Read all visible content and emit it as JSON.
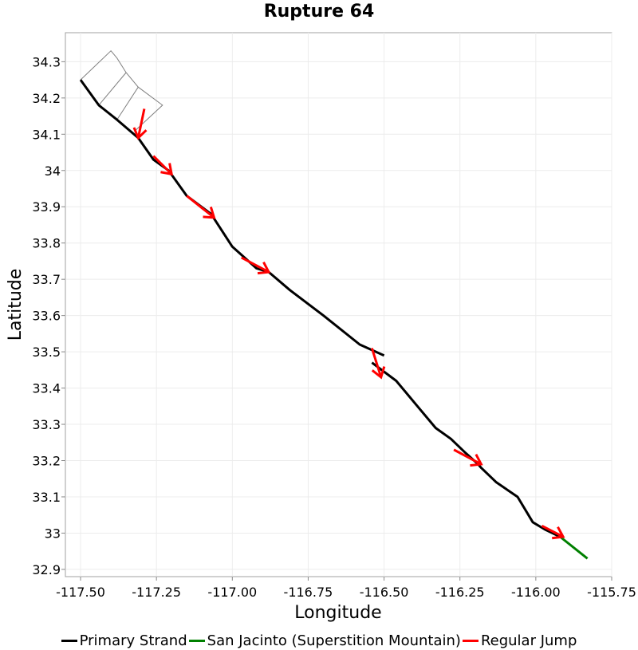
{
  "chart_data": {
    "type": "line",
    "title": "Rupture 64",
    "xlabel": "Longitude",
    "ylabel": "Latitude",
    "xlim": [
      -117.55,
      -115.75
    ],
    "ylim": [
      32.88,
      34.38
    ],
    "xticks": [
      -117.5,
      -117.25,
      -117.0,
      -116.75,
      -116.5,
      -116.25,
      -116.0,
      -115.75
    ],
    "xtick_labels": [
      "-117.50",
      "-117.25",
      "-117.00",
      "-116.75",
      "-116.50",
      "-116.25",
      "-116.00",
      "-115.75"
    ],
    "yticks": [
      32.9,
      33.0,
      33.1,
      33.2,
      33.3,
      33.4,
      33.5,
      33.6,
      33.7,
      33.8,
      33.9,
      34.0,
      34.1,
      34.2,
      34.3
    ],
    "ytick_labels": [
      "32.9",
      "33",
      "33.1",
      "33.2",
      "33.3",
      "33.4",
      "33.5",
      "33.6",
      "33.7",
      "33.8",
      "33.9",
      "34",
      "34.1",
      "34.2",
      "34.3"
    ],
    "grid": true,
    "legend_position": "bottom",
    "series": [
      {
        "name": "Primary Strand",
        "color": "#000000",
        "segments": [
          [
            [
              -117.5,
              34.25
            ],
            [
              -117.44,
              34.18
            ],
            [
              -117.38,
              34.14
            ],
            [
              -117.31,
              34.09
            ],
            [
              -117.26,
              34.03
            ],
            [
              -117.21,
              34.0
            ],
            [
              -117.15,
              33.93
            ],
            [
              -117.07,
              33.88
            ],
            [
              -117.0,
              33.79
            ],
            [
              -116.92,
              33.73
            ],
            [
              -116.88,
              33.72
            ],
            [
              -116.81,
              33.67
            ],
            [
              -116.7,
              33.6
            ],
            [
              -116.58,
              33.52
            ],
            [
              -116.5,
              33.49
            ]
          ],
          [
            [
              -116.54,
              33.47
            ],
            [
              -116.46,
              33.42
            ],
            [
              -116.39,
              33.35
            ],
            [
              -116.33,
              33.29
            ],
            [
              -116.28,
              33.26
            ],
            [
              -116.23,
              33.22
            ],
            [
              -116.19,
              33.19
            ],
            [
              -116.18,
              33.18
            ],
            [
              -116.13,
              33.14
            ],
            [
              -116.06,
              33.1
            ],
            [
              -116.01,
              33.03
            ],
            [
              -115.97,
              33.01
            ],
            [
              -115.92,
              32.99
            ]
          ]
        ]
      },
      {
        "name": "San Jacinto (Superstition Mountain)",
        "color": "#008000",
        "segments": [
          [
            [
              -115.92,
              32.99
            ],
            [
              -115.83,
              32.93
            ]
          ]
        ]
      },
      {
        "name": "Regular Jump",
        "color": "#ff0000",
        "jumps": [
          [
            [
              -117.29,
              34.17
            ],
            [
              -117.31,
              34.09
            ]
          ],
          [
            [
              -117.26,
              34.04
            ],
            [
              -117.2,
              33.99
            ]
          ],
          [
            [
              -117.15,
              33.93
            ],
            [
              -117.06,
              33.87
            ]
          ],
          [
            [
              -116.97,
              33.76
            ],
            [
              -116.88,
              33.72
            ]
          ],
          [
            [
              -116.54,
              33.51
            ],
            [
              -116.51,
              33.43
            ]
          ],
          [
            [
              -116.27,
              33.23
            ],
            [
              -116.18,
              33.19
            ]
          ],
          [
            [
              -115.98,
              33.02
            ],
            [
              -115.91,
              32.99
            ]
          ]
        ]
      }
    ],
    "fault_outline": {
      "color": "#808080",
      "polylines": [
        [
          [
            -117.5,
            34.25
          ],
          [
            -117.4,
            34.33
          ],
          [
            -117.38,
            34.31
          ],
          [
            -117.35,
            34.27
          ],
          [
            -117.31,
            34.23
          ],
          [
            -117.23,
            34.18
          ],
          [
            -117.32,
            34.11
          ]
        ],
        [
          [
            -117.44,
            34.18
          ],
          [
            -117.35,
            34.27
          ]
        ],
        [
          [
            -117.38,
            34.14
          ],
          [
            -117.31,
            34.23
          ]
        ]
      ]
    }
  }
}
